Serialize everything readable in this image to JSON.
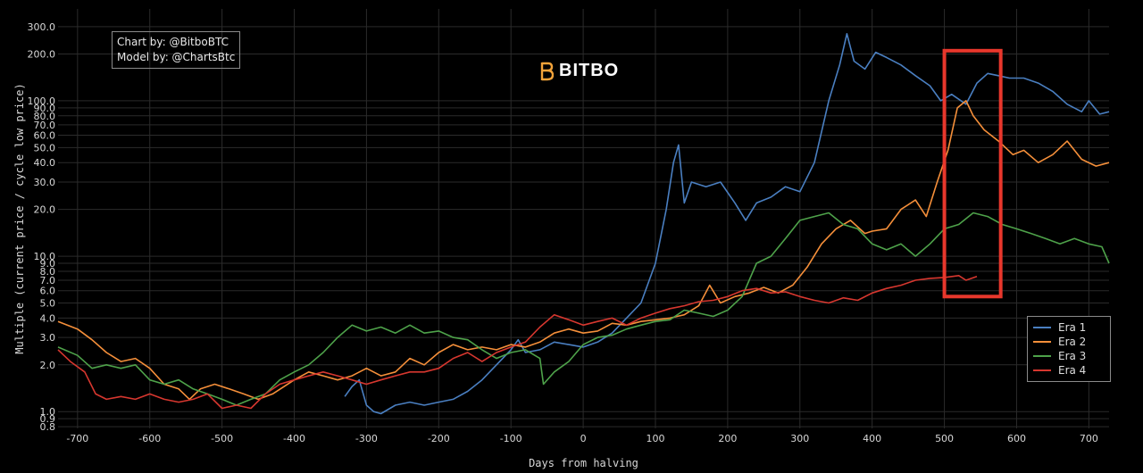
{
  "credits": {
    "line1": "Chart by: @BitboBTC",
    "line2": "Model by: @ChartsBtc"
  },
  "logo": {
    "text": "BITBO",
    "icon": "bitbo-logo-icon",
    "color": "#f2a33a"
  },
  "highlight": {
    "color": "#e8372c",
    "x_range": [
      500,
      578
    ],
    "y_range": [
      5.5,
      210
    ]
  },
  "chart_data": {
    "type": "line",
    "title": "",
    "xlabel": "Days from halving",
    "ylabel": "Multiple (current price / cycle low price)",
    "xlim": [
      -727,
      728
    ],
    "ylim": [
      0.78,
      390
    ],
    "yscale": "log",
    "grid": true,
    "legend_position": "bottom-right",
    "x_ticks": [
      -700,
      -600,
      -500,
      -400,
      -300,
      -200,
      -100,
      0,
      100,
      200,
      300,
      400,
      500,
      600,
      700
    ],
    "y_ticks": [
      0.8,
      0.9,
      1.0,
      2.0,
      3.0,
      4.0,
      5.0,
      6.0,
      7.0,
      8.0,
      9.0,
      10.0,
      20.0,
      30.0,
      40.0,
      50.0,
      60.0,
      70.0,
      80.0,
      90.0,
      100.0,
      200.0,
      300.0
    ],
    "y_tick_labels": [
      "0.8",
      "0.9",
      "1.0",
      "2.0",
      "3.0",
      "4.0",
      "5.0",
      "6.0",
      "7.0",
      "8.0",
      "9.0",
      "10.0",
      "20.0",
      "30.0",
      "40.0",
      "50.0",
      "60.0",
      "70.0",
      "80.0",
      "90.0",
      "100.0",
      "200.0",
      "300.0"
    ],
    "series": [
      {
        "name": "Era 1",
        "color": "#4a7fc1",
        "points": [
          [
            -330,
            1.25
          ],
          [
            -320,
            1.45
          ],
          [
            -310,
            1.6
          ],
          [
            -300,
            1.1
          ],
          [
            -290,
            1.0
          ],
          [
            -280,
            0.97
          ],
          [
            -260,
            1.1
          ],
          [
            -240,
            1.15
          ],
          [
            -220,
            1.1
          ],
          [
            -200,
            1.15
          ],
          [
            -180,
            1.2
          ],
          [
            -160,
            1.35
          ],
          [
            -140,
            1.6
          ],
          [
            -120,
            2.0
          ],
          [
            -100,
            2.5
          ],
          [
            -90,
            2.9
          ],
          [
            -80,
            2.4
          ],
          [
            -60,
            2.5
          ],
          [
            -40,
            2.8
          ],
          [
            -20,
            2.7
          ],
          [
            0,
            2.6
          ],
          [
            20,
            2.8
          ],
          [
            40,
            3.2
          ],
          [
            60,
            4.0
          ],
          [
            80,
            5.0
          ],
          [
            100,
            9.0
          ],
          [
            115,
            20.0
          ],
          [
            125,
            40.0
          ],
          [
            132,
            52.0
          ],
          [
            140,
            22.0
          ],
          [
            150,
            30.0
          ],
          [
            170,
            28.0
          ],
          [
            190,
            30.0
          ],
          [
            210,
            22.0
          ],
          [
            225,
            17.0
          ],
          [
            240,
            22.0
          ],
          [
            260,
            24.0
          ],
          [
            280,
            28.0
          ],
          [
            300,
            26.0
          ],
          [
            320,
            40.0
          ],
          [
            340,
            100.0
          ],
          [
            355,
            170.0
          ],
          [
            365,
            270.0
          ],
          [
            375,
            180.0
          ],
          [
            390,
            160.0
          ],
          [
            405,
            205.0
          ],
          [
            420,
            190.0
          ],
          [
            440,
            170.0
          ],
          [
            460,
            145.0
          ],
          [
            480,
            125.0
          ],
          [
            495,
            100.0
          ],
          [
            510,
            110.0
          ],
          [
            530,
            95.0
          ],
          [
            545,
            130.0
          ],
          [
            560,
            150.0
          ],
          [
            575,
            145.0
          ],
          [
            590,
            140.0
          ],
          [
            610,
            140.0
          ],
          [
            630,
            130.0
          ],
          [
            650,
            115.0
          ],
          [
            670,
            95.0
          ],
          [
            690,
            85.0
          ],
          [
            700,
            100.0
          ],
          [
            715,
            82.0
          ],
          [
            728,
            85.0
          ]
        ]
      },
      {
        "name": "Era 2",
        "color": "#f58f3a",
        "points": [
          [
            -727,
            3.8
          ],
          [
            -700,
            3.4
          ],
          [
            -680,
            2.9
          ],
          [
            -660,
            2.4
          ],
          [
            -640,
            2.1
          ],
          [
            -620,
            2.2
          ],
          [
            -600,
            1.9
          ],
          [
            -580,
            1.5
          ],
          [
            -560,
            1.4
          ],
          [
            -545,
            1.2
          ],
          [
            -530,
            1.4
          ],
          [
            -510,
            1.5
          ],
          [
            -490,
            1.4
          ],
          [
            -470,
            1.3
          ],
          [
            -450,
            1.2
          ],
          [
            -430,
            1.3
          ],
          [
            -400,
            1.6
          ],
          [
            -380,
            1.8
          ],
          [
            -360,
            1.7
          ],
          [
            -340,
            1.6
          ],
          [
            -320,
            1.7
          ],
          [
            -300,
            1.9
          ],
          [
            -280,
            1.7
          ],
          [
            -260,
            1.8
          ],
          [
            -240,
            2.2
          ],
          [
            -220,
            2.0
          ],
          [
            -200,
            2.4
          ],
          [
            -180,
            2.7
          ],
          [
            -160,
            2.5
          ],
          [
            -140,
            2.6
          ],
          [
            -120,
            2.5
          ],
          [
            -100,
            2.7
          ],
          [
            -80,
            2.6
          ],
          [
            -60,
            2.8
          ],
          [
            -40,
            3.2
          ],
          [
            -20,
            3.4
          ],
          [
            0,
            3.2
          ],
          [
            20,
            3.3
          ],
          [
            40,
            3.7
          ],
          [
            60,
            3.6
          ],
          [
            80,
            3.8
          ],
          [
            100,
            3.9
          ],
          [
            120,
            4.0
          ],
          [
            140,
            4.2
          ],
          [
            160,
            4.8
          ],
          [
            175,
            6.5
          ],
          [
            190,
            5.0
          ],
          [
            210,
            5.5
          ],
          [
            230,
            5.8
          ],
          [
            250,
            6.3
          ],
          [
            270,
            5.8
          ],
          [
            290,
            6.5
          ],
          [
            310,
            8.5
          ],
          [
            330,
            12.0
          ],
          [
            350,
            15.0
          ],
          [
            370,
            17.0
          ],
          [
            390,
            14.0
          ],
          [
            400,
            14.5
          ],
          [
            420,
            15.0
          ],
          [
            440,
            20.0
          ],
          [
            460,
            23.0
          ],
          [
            475,
            18.0
          ],
          [
            490,
            30.0
          ],
          [
            505,
            48.0
          ],
          [
            518,
            90.0
          ],
          [
            530,
            100.0
          ],
          [
            540,
            80.0
          ],
          [
            555,
            65.0
          ],
          [
            575,
            55.0
          ],
          [
            595,
            45.0
          ],
          [
            610,
            48.0
          ],
          [
            630,
            40.0
          ],
          [
            650,
            45.0
          ],
          [
            670,
            55.0
          ],
          [
            690,
            42.0
          ],
          [
            710,
            38.0
          ],
          [
            728,
            40.0
          ]
        ]
      },
      {
        "name": "Era 3",
        "color": "#4ea24a",
        "points": [
          [
            -727,
            2.6
          ],
          [
            -700,
            2.3
          ],
          [
            -680,
            1.9
          ],
          [
            -660,
            2.0
          ],
          [
            -640,
            1.9
          ],
          [
            -620,
            2.0
          ],
          [
            -600,
            1.6
          ],
          [
            -580,
            1.5
          ],
          [
            -560,
            1.6
          ],
          [
            -540,
            1.4
          ],
          [
            -520,
            1.3
          ],
          [
            -500,
            1.2
          ],
          [
            -480,
            1.1
          ],
          [
            -460,
            1.2
          ],
          [
            -440,
            1.3
          ],
          [
            -420,
            1.6
          ],
          [
            -400,
            1.8
          ],
          [
            -380,
            2.0
          ],
          [
            -360,
            2.4
          ],
          [
            -340,
            3.0
          ],
          [
            -320,
            3.6
          ],
          [
            -300,
            3.3
          ],
          [
            -280,
            3.5
          ],
          [
            -260,
            3.2
          ],
          [
            -240,
            3.6
          ],
          [
            -220,
            3.2
          ],
          [
            -200,
            3.3
          ],
          [
            -180,
            3.0
          ],
          [
            -160,
            2.9
          ],
          [
            -140,
            2.5
          ],
          [
            -120,
            2.2
          ],
          [
            -100,
            2.4
          ],
          [
            -80,
            2.5
          ],
          [
            -60,
            2.2
          ],
          [
            -55,
            1.5
          ],
          [
            -40,
            1.8
          ],
          [
            -20,
            2.1
          ],
          [
            0,
            2.7
          ],
          [
            20,
            3.0
          ],
          [
            40,
            3.1
          ],
          [
            60,
            3.4
          ],
          [
            80,
            3.6
          ],
          [
            100,
            3.8
          ],
          [
            120,
            3.9
          ],
          [
            140,
            4.5
          ],
          [
            160,
            4.3
          ],
          [
            180,
            4.1
          ],
          [
            200,
            4.5
          ],
          [
            220,
            5.5
          ],
          [
            240,
            9.0
          ],
          [
            260,
            10.0
          ],
          [
            280,
            13.0
          ],
          [
            300,
            17.0
          ],
          [
            320,
            18.0
          ],
          [
            340,
            19.0
          ],
          [
            360,
            16.0
          ],
          [
            380,
            15.0
          ],
          [
            400,
            12.0
          ],
          [
            420,
            11.0
          ],
          [
            440,
            12.0
          ],
          [
            460,
            10.0
          ],
          [
            480,
            12.0
          ],
          [
            500,
            15.0
          ],
          [
            520,
            16.0
          ],
          [
            540,
            19.0
          ],
          [
            560,
            18.0
          ],
          [
            580,
            16.0
          ],
          [
            600,
            15.0
          ],
          [
            620,
            14.0
          ],
          [
            640,
            13.0
          ],
          [
            660,
            12.0
          ],
          [
            680,
            13.0
          ],
          [
            700,
            12.0
          ],
          [
            718,
            11.5
          ],
          [
            728,
            9.0
          ]
        ]
      },
      {
        "name": "Era 4",
        "color": "#d7372f",
        "points": [
          [
            -727,
            2.5
          ],
          [
            -710,
            2.1
          ],
          [
            -690,
            1.8
          ],
          [
            -675,
            1.3
          ],
          [
            -660,
            1.2
          ],
          [
            -640,
            1.25
          ],
          [
            -620,
            1.2
          ],
          [
            -600,
            1.3
          ],
          [
            -580,
            1.2
          ],
          [
            -560,
            1.15
          ],
          [
            -540,
            1.2
          ],
          [
            -520,
            1.3
          ],
          [
            -500,
            1.05
          ],
          [
            -480,
            1.1
          ],
          [
            -460,
            1.05
          ],
          [
            -440,
            1.3
          ],
          [
            -420,
            1.5
          ],
          [
            -400,
            1.6
          ],
          [
            -380,
            1.7
          ],
          [
            -360,
            1.8
          ],
          [
            -340,
            1.7
          ],
          [
            -320,
            1.6
          ],
          [
            -300,
            1.5
          ],
          [
            -280,
            1.6
          ],
          [
            -260,
            1.7
          ],
          [
            -240,
            1.8
          ],
          [
            -220,
            1.8
          ],
          [
            -200,
            1.9
          ],
          [
            -180,
            2.2
          ],
          [
            -160,
            2.4
          ],
          [
            -140,
            2.1
          ],
          [
            -120,
            2.4
          ],
          [
            -100,
            2.6
          ],
          [
            -80,
            2.8
          ],
          [
            -60,
            3.5
          ],
          [
            -40,
            4.2
          ],
          [
            -20,
            3.9
          ],
          [
            0,
            3.6
          ],
          [
            20,
            3.8
          ],
          [
            40,
            4.0
          ],
          [
            60,
            3.6
          ],
          [
            80,
            4.0
          ],
          [
            100,
            4.3
          ],
          [
            120,
            4.6
          ],
          [
            140,
            4.8
          ],
          [
            160,
            5.1
          ],
          [
            180,
            5.2
          ],
          [
            200,
            5.5
          ],
          [
            220,
            6.0
          ],
          [
            240,
            6.2
          ],
          [
            260,
            5.8
          ],
          [
            280,
            5.9
          ],
          [
            300,
            5.5
          ],
          [
            320,
            5.2
          ],
          [
            340,
            5.0
          ],
          [
            360,
            5.4
          ],
          [
            380,
            5.2
          ],
          [
            400,
            5.8
          ],
          [
            420,
            6.2
          ],
          [
            440,
            6.5
          ],
          [
            460,
            7.0
          ],
          [
            480,
            7.2
          ],
          [
            500,
            7.3
          ],
          [
            520,
            7.5
          ],
          [
            530,
            7.0
          ],
          [
            545,
            7.4
          ]
        ]
      }
    ]
  }
}
